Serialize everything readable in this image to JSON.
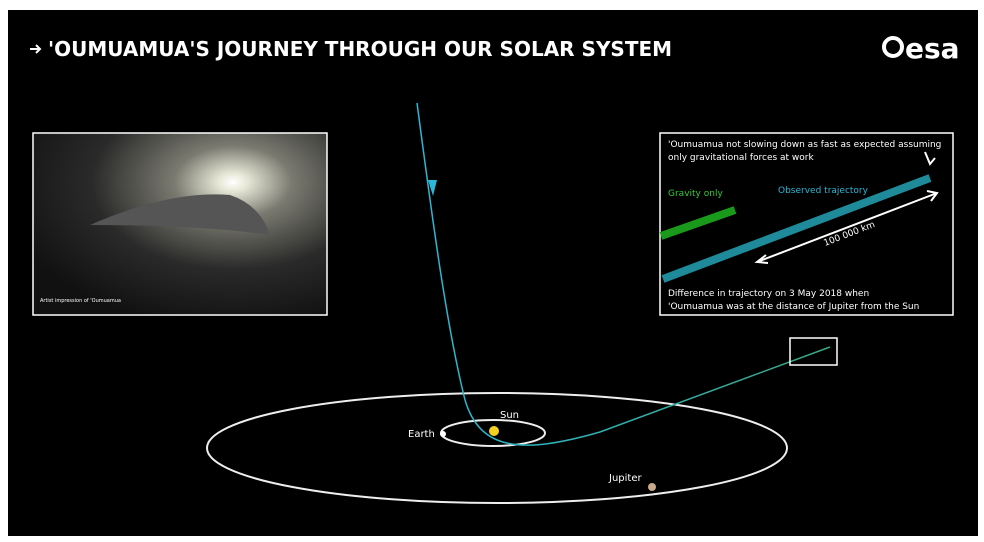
{
  "header": {
    "title": "'OUMUAMUA'S JOURNEY THROUGH OUR SOLAR SYSTEM",
    "logo": "esa"
  },
  "image": {
    "caption": "Artist impression of 'Oumuamua"
  },
  "inset": {
    "top_lines": [
      "'Oumuamua not slowing down as fast as expected assuming",
      "only gravitational forces at work"
    ],
    "gravity_label": "Gravity only",
    "observed_label": "Observed trajectory",
    "distance_label": "100 000 km",
    "bottom_lines": [
      "Difference in trajectory on 3 May 2018 when",
      "'Oumuamua was at the distance of Jupiter from the Sun"
    ]
  },
  "labels": {
    "sun": "Sun",
    "earth": "Earth",
    "jupiter": "Jupiter"
  }
}
